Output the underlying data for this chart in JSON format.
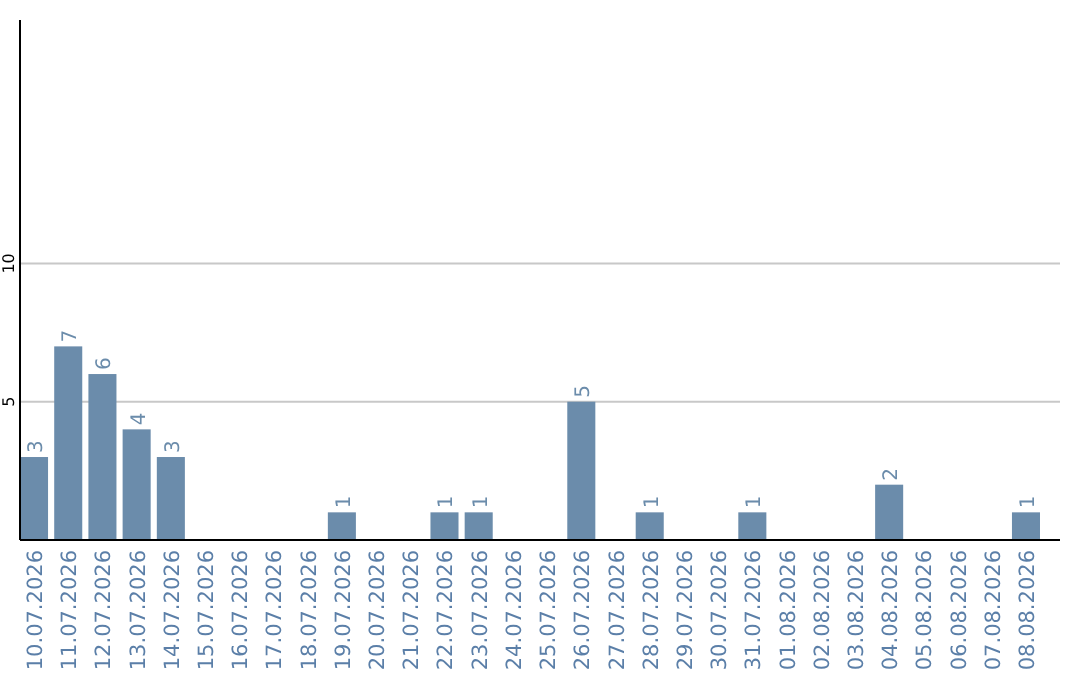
{
  "chart_data": {
    "type": "bar",
    "categories": [
      "10.07.2026",
      "11.07.2026",
      "12.07.2026",
      "13.07.2026",
      "14.07.2026",
      "15.07.2026",
      "16.07.2026",
      "17.07.2026",
      "18.07.2026",
      "19.07.2026",
      "20.07.2026",
      "21.07.2026",
      "22.07.2026",
      "23.07.2026",
      "24.07.2026",
      "25.07.2026",
      "26.07.2026",
      "27.07.2026",
      "28.07.2026",
      "29.07.2026",
      "30.07.2026",
      "31.07.2026",
      "01.08.2026",
      "02.08.2026",
      "03.08.2026",
      "04.08.2026",
      "05.08.2026",
      "06.08.2026",
      "07.08.2026",
      "08.08.2026"
    ],
    "values": [
      3,
      7,
      6,
      4,
      3,
      null,
      null,
      null,
      null,
      1,
      null,
      null,
      1,
      1,
      null,
      null,
      5,
      null,
      1,
      null,
      null,
      1,
      null,
      null,
      null,
      2,
      null,
      null,
      null,
      1
    ],
    "color": "#6b8cab",
    "ylim": [
      0,
      18.8
    ],
    "yticks": [
      5,
      10
    ],
    "grid": "y",
    "data_labels": true
  }
}
